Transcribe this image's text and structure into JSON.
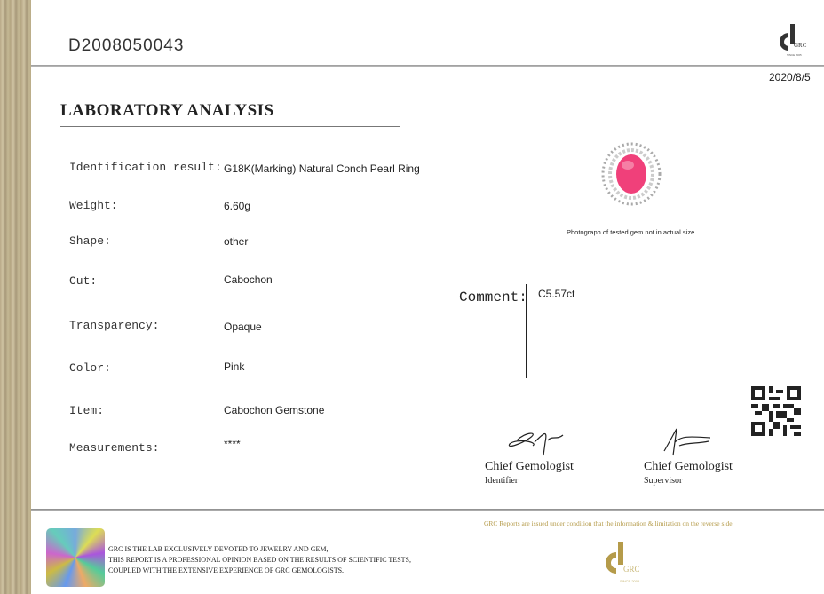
{
  "certificate_number": "D2008050043",
  "date": "2020/8/5",
  "logo": {
    "text": "GRC",
    "tagline": "SINCE 2005"
  },
  "title": "LABORATORY ANALYSIS",
  "fields": [
    {
      "label": "Identification result:",
      "value": "G18K(Marking) Natural Conch Pearl Ring"
    },
    {
      "label": "Weight:",
      "value": "6.60g"
    },
    {
      "label": "Shape:",
      "value": "other"
    },
    {
      "label": "Cut:",
      "value": "Cabochon"
    },
    {
      "label": "Transparency:",
      "value": "Opaque"
    },
    {
      "label": "Color:",
      "value": "Pink"
    },
    {
      "label": "Item:",
      "value": "Cabochon Gemstone"
    },
    {
      "label": "Measurements:",
      "value": "****"
    }
  ],
  "photo_caption": "Photograph of tested gem not in actual size",
  "comment": {
    "label": "Comment:",
    "value": "C5.57ct"
  },
  "signatures": [
    {
      "title": "Chief Gemologist",
      "role": "Identifier"
    },
    {
      "title": "Chief Gemologist",
      "role": "Supervisor"
    }
  ],
  "disclaimer": [
    "GRC IS THE LAB EXCLUSIVELY DEVOTED TO JEWELRY AND GEM,",
    "THIS REPORT IS A PROFESSIONAL OPINION BASED ON THE RESULTS OF SCIENTIFIC TESTS,",
    "COUPLED WITH THE EXTENSIVE EXPERIENCE OF GRC GEMOLOGISTS."
  ],
  "notice": "GRC Reports are issued under condition that the information & limitation on the reverse side.",
  "colors": {
    "gold": "#b59b4a",
    "gem_pink": "#f0407a"
  }
}
